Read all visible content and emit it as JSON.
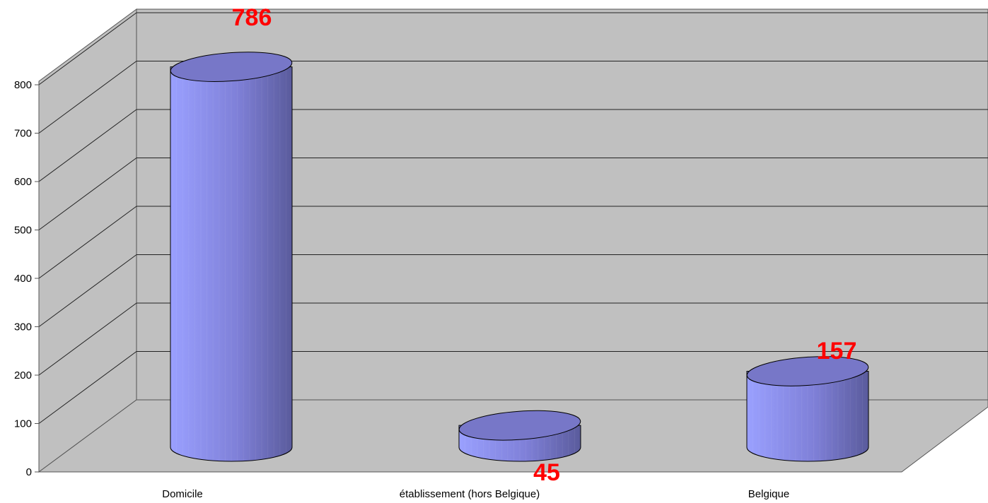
{
  "chart_data": {
    "type": "bar",
    "categories": [
      "Domicile",
      "établissement (hors Belgique)",
      "Belgique"
    ],
    "values": [
      786,
      45,
      157
    ],
    "ylim": [
      0,
      800
    ],
    "yticks": [
      0,
      100,
      200,
      300,
      400,
      500,
      600,
      700,
      800
    ],
    "grid": true,
    "colors": {
      "wall": "#c0c0c0",
      "bar_light": "#9999ff",
      "bar_dark": "#5c5c9e",
      "bar_top": "#7777c8",
      "label": "#ff0000"
    }
  }
}
